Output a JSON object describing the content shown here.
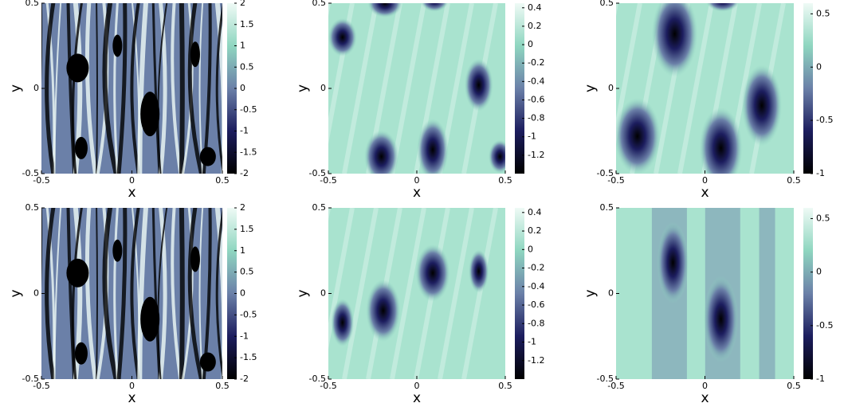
{
  "chart_data": [
    {
      "type": "heatmap",
      "xlabel": "x",
      "ylabel": "y",
      "xlim": [
        -0.5,
        0.5
      ],
      "xticks": [
        -0.5,
        0,
        0.5
      ],
      "ylim": [
        -0.5,
        0.5
      ],
      "yticks": [
        -0.5,
        0,
        0.5
      ],
      "colorbar_lim": [
        -2,
        2
      ],
      "colorbar_ticks": [
        -2,
        -1.5,
        -1,
        -0.5,
        0,
        0.5,
        1,
        1.5,
        2
      ],
      "colors": [
        "#000000",
        "#1c1d5e",
        "#6b80a8",
        "#8fd6c0",
        "#effaf6"
      ]
    },
    {
      "type": "heatmap",
      "xlabel": "x",
      "ylabel": "y",
      "xlim": [
        -0.5,
        0.5
      ],
      "xticks": [
        -0.5,
        0,
        0.5
      ],
      "ylim": [
        -0.5,
        0.5
      ],
      "yticks": [
        -0.5,
        0,
        0.5
      ],
      "colorbar_lim": [
        -1.4,
        0.45
      ],
      "colorbar_ticks": [
        -1.2,
        -1,
        -0.8,
        -0.6,
        -0.4,
        -0.2,
        0,
        0.2,
        0.4
      ],
      "colors": [
        "#000000",
        "#1c1d5e",
        "#6b80a8",
        "#8fd6c0",
        "#effaf6"
      ]
    },
    {
      "type": "heatmap",
      "xlabel": "x",
      "ylabel": "y",
      "xlim": [
        -0.5,
        0.5
      ],
      "xticks": [
        -0.5,
        0,
        0.5
      ],
      "ylim": [
        -0.5,
        0.5
      ],
      "yticks": [
        -0.5,
        0,
        0.5
      ],
      "colorbar_lim": [
        -1,
        0.6
      ],
      "colorbar_ticks": [
        -1,
        -0.5,
        0,
        0.5
      ],
      "colors": [
        "#000000",
        "#1c1d5e",
        "#6b80a8",
        "#8fd6c0",
        "#effaf6"
      ]
    },
    {
      "type": "heatmap",
      "xlabel": "x",
      "ylabel": "y",
      "xlim": [
        -0.5,
        0.5
      ],
      "xticks": [
        -0.5,
        0,
        0.5
      ],
      "ylim": [
        -0.5,
        0.5
      ],
      "yticks": [
        -0.5,
        0,
        0.5
      ],
      "colorbar_lim": [
        -2,
        2
      ],
      "colorbar_ticks": [
        -2,
        -1.5,
        -1,
        -0.5,
        0,
        0.5,
        1,
        1.5,
        2
      ],
      "colors": [
        "#000000",
        "#1c1d5e",
        "#6b80a8",
        "#8fd6c0",
        "#effaf6"
      ]
    },
    {
      "type": "heatmap",
      "xlabel": "x",
      "ylabel": "y",
      "xlim": [
        -0.5,
        0.5
      ],
      "xticks": [
        -0.5,
        0,
        0.5
      ],
      "ylim": [
        -0.5,
        0.5
      ],
      "yticks": [
        -0.5,
        0,
        0.5
      ],
      "colorbar_lim": [
        -1.4,
        0.45
      ],
      "colorbar_ticks": [
        -1.2,
        -1,
        -0.8,
        -0.6,
        -0.4,
        -0.2,
        0,
        0.2,
        0.4
      ],
      "colors": [
        "#000000",
        "#1c1d5e",
        "#6b80a8",
        "#8fd6c0",
        "#effaf6"
      ]
    },
    {
      "type": "heatmap",
      "xlabel": "x",
      "ylabel": "y",
      "xlim": [
        -0.5,
        0.5
      ],
      "xticks": [
        -0.5,
        0,
        0.5
      ],
      "ylim": [
        -0.5,
        0.5
      ],
      "yticks": [
        -0.5,
        0,
        0.5
      ],
      "colorbar_lim": [
        -1,
        0.6
      ],
      "colorbar_ticks": [
        -1,
        -0.5,
        0,
        0.5
      ],
      "colors": [
        "#000000",
        "#1c1d5e",
        "#6b80a8",
        "#8fd6c0",
        "#effaf6"
      ]
    }
  ]
}
